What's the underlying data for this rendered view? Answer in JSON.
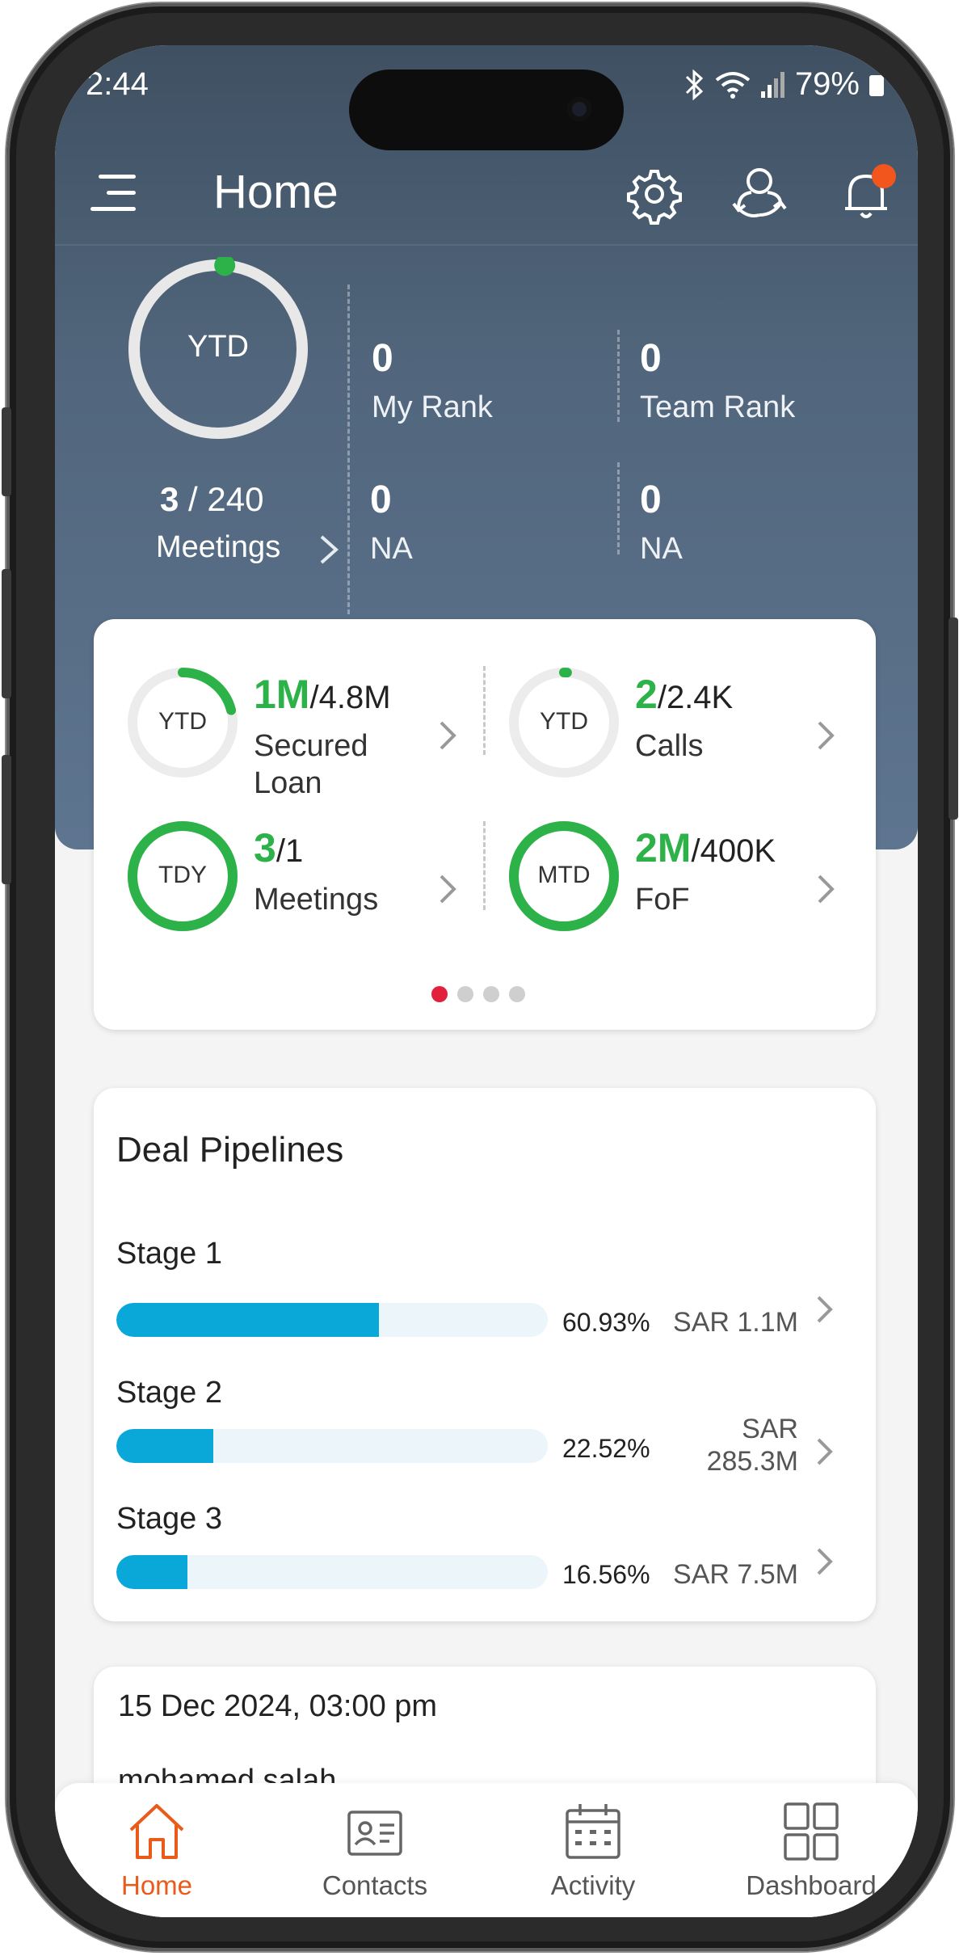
{
  "status_bar": {
    "time": "2:44",
    "battery": "79%"
  },
  "app_bar": {
    "title": "Home"
  },
  "summary": {
    "ring_label": "YTD",
    "meetings_done": "3",
    "meetings_separator": " / ",
    "meetings_target": "240",
    "meetings_label": "Meetings",
    "ring_progress": 0.0125,
    "stats": [
      {
        "value": "0",
        "label": "My Rank"
      },
      {
        "value": "0",
        "label": "Team Rank"
      },
      {
        "value": "0",
        "label": "NA"
      },
      {
        "value": "0",
        "label": "NA"
      }
    ]
  },
  "kpis": [
    {
      "period": "YTD",
      "achieved": "1M",
      "slash": "/",
      "target": "4.8M",
      "name_line1": "Secured",
      "name_line2": "Loan",
      "progress": 0.21
    },
    {
      "period": "YTD",
      "achieved": "2",
      "slash": "/",
      "target": "2.4K",
      "name_line1": "Calls",
      "name_line2": "",
      "progress": 0.01
    },
    {
      "period": "TDY",
      "achieved": "3",
      "slash": "/",
      "target": "1",
      "name_line1": "Meetings",
      "name_line2": "",
      "progress": 1.0
    },
    {
      "period": "MTD",
      "achieved": "2M",
      "slash": "/",
      "target": "400K",
      "name_line1": "FoF",
      "name_line2": "",
      "progress": 1.0
    }
  ],
  "carousel": {
    "pages": 4,
    "active": 0
  },
  "deal_pipelines": {
    "title": "Deal Pipelines",
    "stages": [
      {
        "name": "Stage 1",
        "percent": "60.93%",
        "fill": 0.6093,
        "amount_line1": "SAR 1.1M",
        "amount_line2": ""
      },
      {
        "name": "Stage 2",
        "percent": "22.52%",
        "fill": 0.2252,
        "amount_line1": "SAR",
        "amount_line2": "285.3M"
      },
      {
        "name": "Stage 3",
        "percent": "16.56%",
        "fill": 0.1656,
        "amount_line1": "SAR 7.5M",
        "amount_line2": ""
      }
    ]
  },
  "activity_card": {
    "date": "15 Dec 2024, 03:00 pm",
    "name": "mohamed salah"
  },
  "bottom_nav": [
    {
      "label": "Home",
      "icon": "home-icon",
      "active": true
    },
    {
      "label": "Contacts",
      "icon": "contact-card-icon",
      "active": false
    },
    {
      "label": "Activity",
      "icon": "calendar-icon",
      "active": false
    },
    {
      "label": "Dashboard",
      "icon": "grid-icon",
      "active": false
    }
  ],
  "colors": {
    "accent_orange": "#ea5a1b",
    "green": "#2db24a",
    "bar_blue": "#0aa8d8",
    "dot_active": "#e21f3d",
    "header": "#51667c"
  }
}
